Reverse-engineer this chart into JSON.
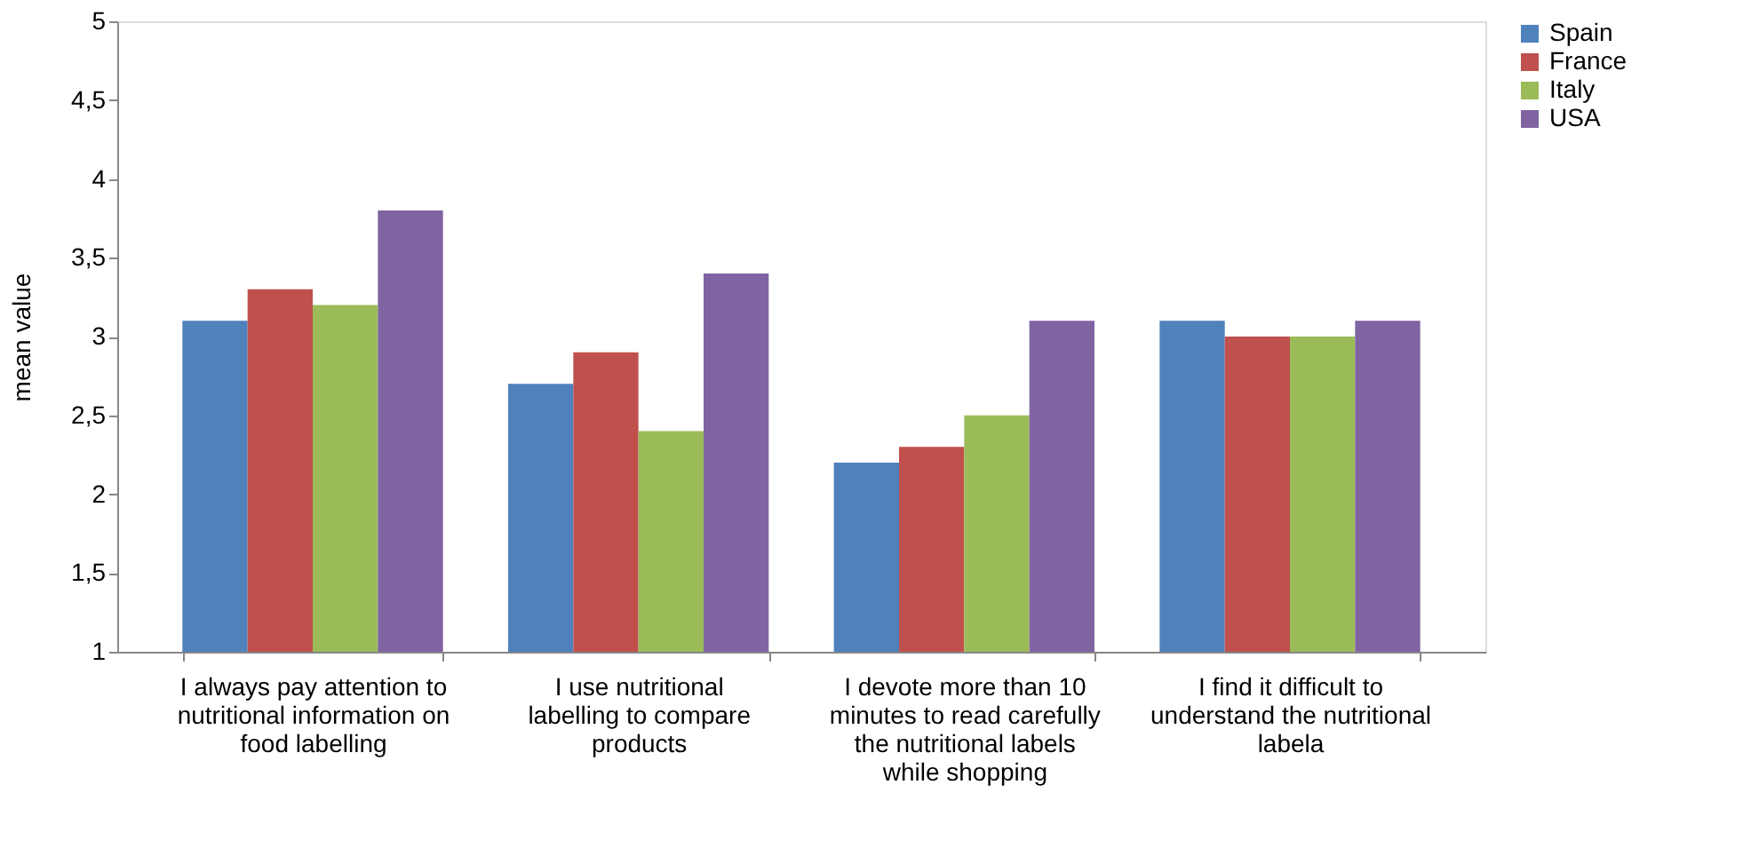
{
  "chart_data": {
    "type": "bar",
    "ylabel": "mean value",
    "categories": [
      "I always pay attention to nutritional information on food labelling",
      "I use nutritional labelling to compare products",
      "I devote more than 10 minutes to read carefully the nutritional labels while shopping",
      "I find it difficult to understand the nutritional labela"
    ],
    "series": [
      {
        "name": "Spain",
        "color": "#4f81bd",
        "values": [
          3.1,
          2.7,
          2.2,
          3.1
        ]
      },
      {
        "name": "France",
        "color": "#c0504d",
        "values": [
          3.3,
          2.9,
          2.3,
          3.0
        ]
      },
      {
        "name": "Italy",
        "color": "#9bbb59",
        "values": [
          3.2,
          2.4,
          2.5,
          3.0
        ]
      },
      {
        "name": "USA",
        "color": "#8064a2",
        "values": [
          3.8,
          3.4,
          3.1,
          3.1
        ]
      }
    ],
    "ylim": [
      1,
      5
    ],
    "yticks": [
      1,
      {
        "value": 1.5,
        "label": "1,5"
      },
      2,
      {
        "value": 2.5,
        "label": "2,5"
      },
      3,
      {
        "value": 3.5,
        "label": "3,5"
      },
      4,
      {
        "value": 4.5,
        "label": "4,5"
      },
      5
    ],
    "grid": false,
    "legend": "right"
  }
}
